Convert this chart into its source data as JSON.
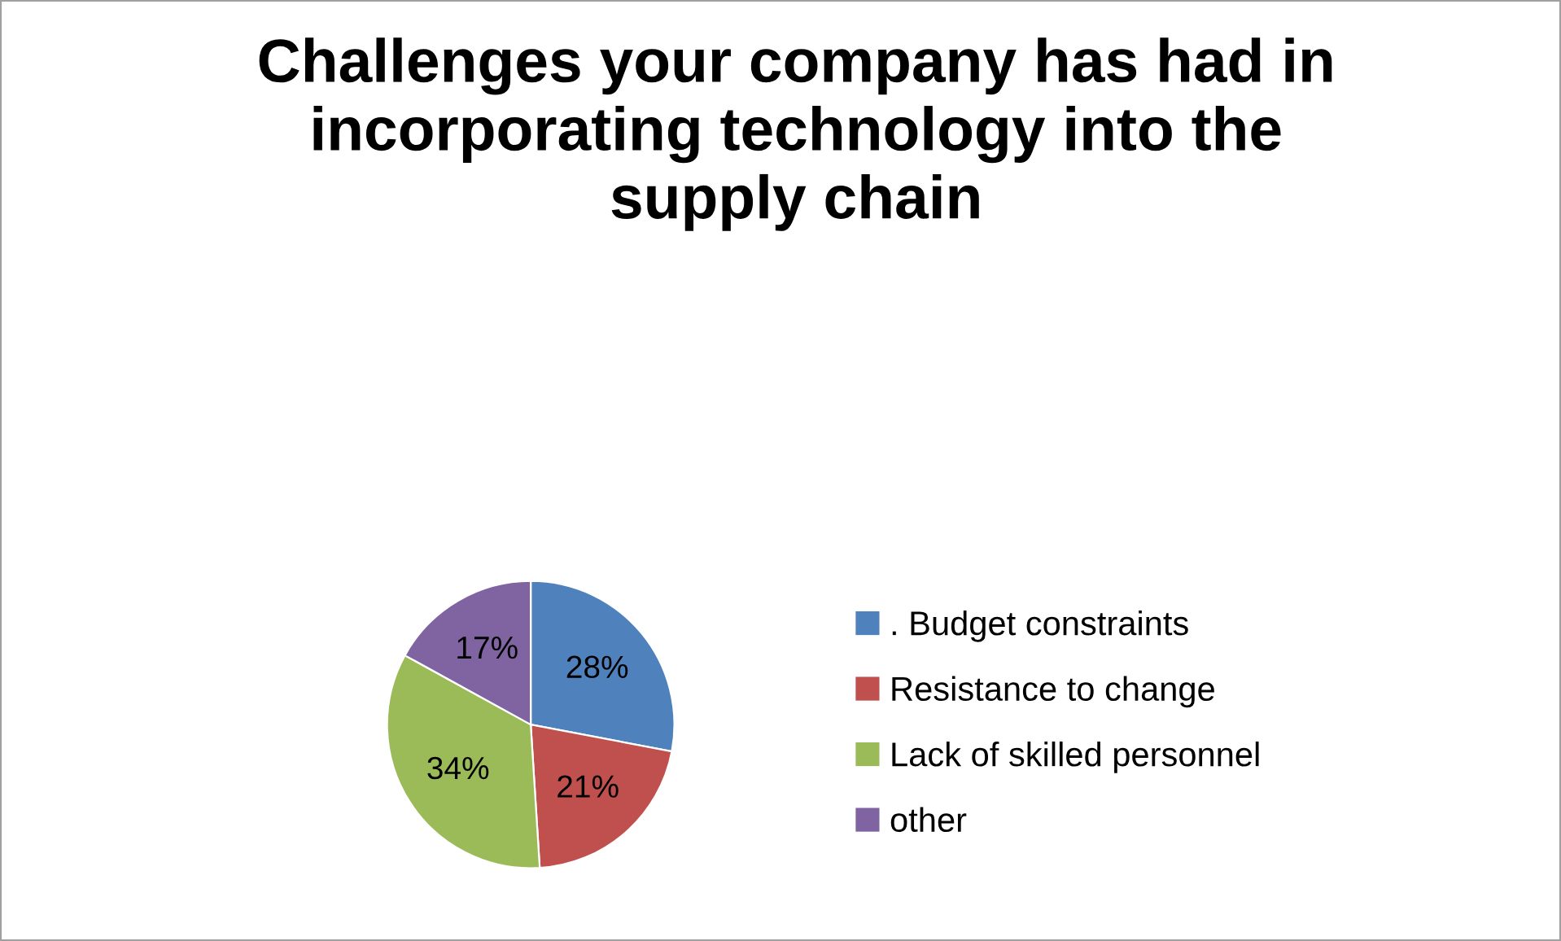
{
  "chart_data": {
    "type": "pie",
    "title": "Challenges your company has had in\nincorporating technology into the\nsupply chain",
    "categories": [
      ". Budget constraints",
      "Resistance to change",
      "Lack of skilled personnel",
      "other"
    ],
    "values": [
      28,
      21,
      34,
      17
    ],
    "value_labels": [
      "28%",
      "21%",
      "34%",
      "17%"
    ],
    "colors": [
      "#4f81bd",
      "#c0504d",
      "#9bbb59",
      "#8064a2"
    ],
    "legend": "right"
  }
}
